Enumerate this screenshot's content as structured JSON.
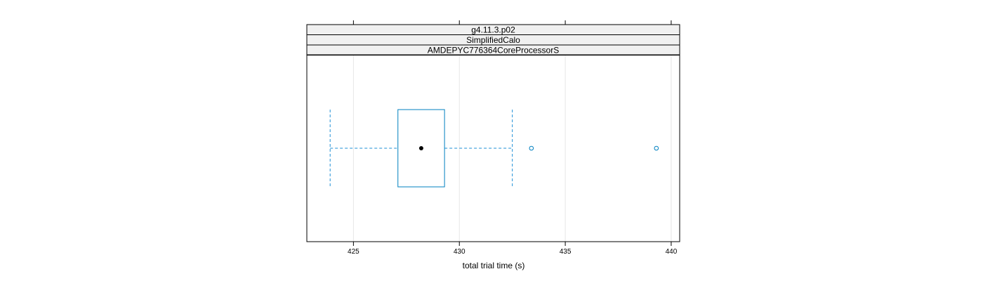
{
  "chart_data": {
    "type": "boxplot",
    "orientation": "horizontal",
    "strips": [
      "g4.11.3.p02",
      "SimplifiedCalo",
      "AMDEPYC776364CoreProcessorS"
    ],
    "xlabel": "total trial time (s)",
    "xlim": [
      422.8,
      440.4
    ],
    "xticks": [
      425,
      430,
      435,
      440
    ],
    "xtick_labels": [
      "425",
      "430",
      "435",
      "440"
    ],
    "grid": true,
    "box": {
      "whisker_low": 423.9,
      "q1": 427.1,
      "median": 428.2,
      "q3": 429.3,
      "whisker_high": 432.5
    },
    "outliers": [
      433.4,
      439.3
    ],
    "colors": {
      "box": "#0080c0",
      "whisker": "#1e8fd6",
      "median_dot": "#000000",
      "strip_bg": "#f0f0f0",
      "grid": "#e6e6e6"
    }
  }
}
